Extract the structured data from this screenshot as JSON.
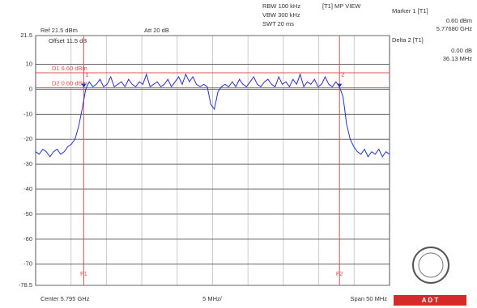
{
  "chart_data": {
    "type": "line",
    "ylim": [
      -78.5,
      21.5
    ],
    "yticks": [
      21.5,
      10,
      0,
      -10,
      -20,
      -30,
      -40,
      -50,
      -60,
      -70,
      -78.5
    ],
    "xlim": [
      5.77,
      5.82
    ],
    "grid": true,
    "series": [
      {
        "color": "#2233cc",
        "values": [
          -25,
          -26,
          -24,
          -25,
          -27,
          -25,
          -24,
          -26,
          -25,
          -23,
          -22,
          -20,
          -15,
          -8,
          0,
          3,
          1,
          2,
          4,
          1,
          2,
          5,
          1,
          2,
          3,
          1,
          4,
          2,
          1,
          3,
          2,
          6,
          1,
          2,
          3,
          1,
          2,
          4,
          1,
          3,
          5,
          2,
          6,
          3,
          5,
          2,
          1,
          2,
          1,
          -6,
          -8,
          -1,
          1,
          2,
          1,
          3,
          1,
          4,
          2,
          1,
          3,
          5,
          2,
          1,
          3,
          4,
          2,
          1,
          5,
          2,
          3,
          1,
          4,
          2,
          6,
          1,
          3,
          2,
          4,
          1,
          2,
          5,
          2,
          1,
          3,
          1,
          -3,
          -14,
          -20,
          -23,
          -25,
          -26,
          -24,
          -27,
          -25,
          -26,
          -24,
          -27,
          -25,
          -26
        ]
      }
    ],
    "display_lines": [
      {
        "label": "D1 6.60 dBm",
        "value": 6.6,
        "color": "#e05050"
      },
      {
        "label": "D2 0.60 dBm",
        "value": 0.6,
        "color": "#e05050"
      }
    ],
    "frequency_lines": [
      {
        "label": "F1",
        "x": 5.7768,
        "color": "#e05050"
      },
      {
        "label": "F2",
        "x": 5.81293,
        "color": "#e05050"
      }
    ],
    "markers": [
      {
        "label": "1",
        "x": 5.7768,
        "value": 0.6
      },
      {
        "label": "2",
        "x": 5.81293,
        "value": 0.6
      }
    ],
    "header": {
      "rbw": "RBW 100 kHz",
      "vbw": "VBW 300 kHz",
      "swt": "SWT 20 ms",
      "mode": "[T1] MP VIEW",
      "ref": "Ref 21.5 dBm",
      "att": "Att 20 dB",
      "offset": "Offset 11.5 dB"
    },
    "marker_panel": {
      "m1_title": "Marker 1 [T1]",
      "m1_level": "0.60 dBm",
      "m1_freq": "5.77680 GHz",
      "d2_title": "Delta 2 [T1]",
      "d2_level": "0.00 dB",
      "d2_freq": "36.13 MHz"
    },
    "footer": {
      "center": "Center 5.795 GHz",
      "div": "5 MHz/",
      "span": "Span 50 MHz"
    },
    "logo": "A D T"
  }
}
